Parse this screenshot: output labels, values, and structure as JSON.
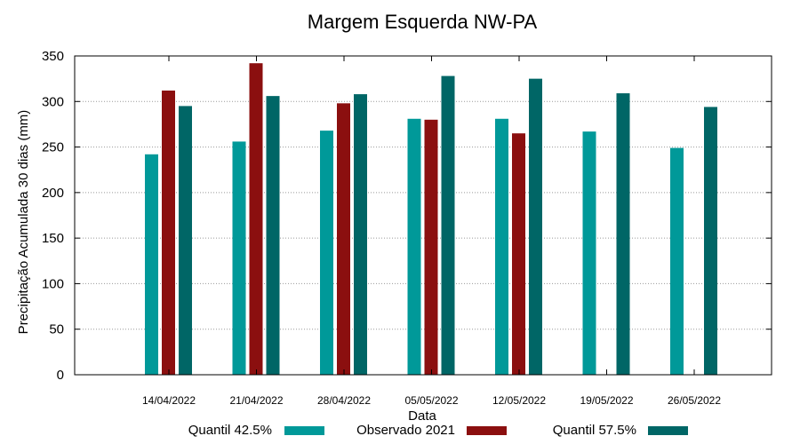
{
  "chart_data": {
    "type": "bar",
    "title": "Margem Esquerda NW-PA",
    "xlabel": "Data",
    "ylabel": "Precipitação Acumulada 30 dias (mm)",
    "ylim": [
      0,
      350
    ],
    "yticks": [
      0,
      50,
      100,
      150,
      200,
      250,
      300,
      350
    ],
    "grid": true,
    "legend_position": "bottom",
    "categories": [
      "14/04/2022",
      "21/04/2022",
      "28/04/2022",
      "05/05/2022",
      "12/05/2022",
      "19/05/2022",
      "26/05/2022"
    ],
    "series": [
      {
        "name": "Quantil 42.5%",
        "color": "#009999",
        "values": [
          242,
          256,
          268,
          281,
          281,
          267,
          249
        ]
      },
      {
        "name": "Observado 2021",
        "color": "#8b0f0f",
        "values": [
          312,
          342,
          298,
          280,
          265,
          null,
          null
        ]
      },
      {
        "name": "Quantil 57.5%",
        "color": "#006666",
        "values": [
          295,
          306,
          308,
          328,
          325,
          309,
          294
        ]
      }
    ]
  }
}
